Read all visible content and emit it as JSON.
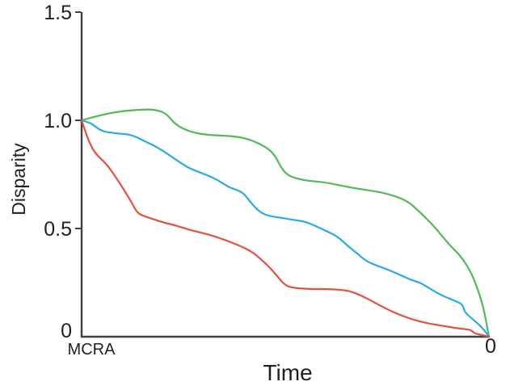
{
  "figure": {
    "background": "#ffffff",
    "axis_color": "#414042",
    "text_color": "#231f20"
  },
  "chart_data": {
    "type": "line",
    "title": "",
    "xlabel": "Time",
    "ylabel": "Disparity",
    "grid": false,
    "legend": "none",
    "xlim": [
      0,
      1
    ],
    "ylim": [
      0,
      1.5
    ],
    "x_tick_labels": [
      "MCRA",
      "0"
    ],
    "y_ticks": [
      1.5,
      1.0,
      0.5,
      0
    ],
    "y_tick_labels": [
      "1.5",
      "1.0",
      "0.5",
      "0"
    ],
    "series": [
      {
        "name": "green",
        "color": "#50ba5a",
        "x": [
          0.0,
          0.038,
          0.087,
          0.147,
          0.177,
          0.206,
          0.23,
          0.262,
          0.296,
          0.335,
          0.381,
          0.415,
          0.454,
          0.474,
          0.49,
          0.504,
          0.52,
          0.554,
          0.593,
          0.633,
          0.673,
          0.712,
          0.752,
          0.798,
          0.831,
          0.865,
          0.885,
          0.905,
          0.927,
          0.946,
          0.96,
          0.974,
          0.984,
          0.992,
          1.0
        ],
        "y": [
          1.0,
          1.02,
          1.04,
          1.05,
          1.05,
          1.035,
          0.98,
          0.95,
          0.935,
          0.93,
          0.925,
          0.91,
          0.875,
          0.84,
          0.78,
          0.75,
          0.735,
          0.72,
          0.715,
          0.7,
          0.685,
          0.675,
          0.66,
          0.63,
          0.575,
          0.51,
          0.465,
          0.42,
          0.38,
          0.33,
          0.28,
          0.21,
          0.15,
          0.08,
          0.0
        ]
      },
      {
        "name": "cyan",
        "color": "#29abe2",
        "x": [
          0.0,
          0.018,
          0.028,
          0.048,
          0.081,
          0.121,
          0.153,
          0.187,
          0.226,
          0.262,
          0.296,
          0.329,
          0.361,
          0.395,
          0.415,
          0.435,
          0.454,
          0.488,
          0.52,
          0.554,
          0.593,
          0.627,
          0.653,
          0.673,
          0.698,
          0.722,
          0.752,
          0.782,
          0.812,
          0.831,
          0.861,
          0.885,
          0.917,
          0.935,
          0.94,
          0.954,
          0.97,
          0.984,
          1.0
        ],
        "y": [
          1.0,
          0.99,
          0.98,
          0.95,
          0.94,
          0.935,
          0.905,
          0.875,
          0.825,
          0.78,
          0.755,
          0.73,
          0.69,
          0.67,
          0.62,
          0.58,
          0.56,
          0.55,
          0.54,
          0.53,
          0.495,
          0.465,
          0.42,
          0.39,
          0.35,
          0.33,
          0.31,
          0.285,
          0.26,
          0.25,
          0.215,
          0.19,
          0.165,
          0.15,
          0.115,
          0.09,
          0.065,
          0.04,
          0.0
        ]
      },
      {
        "name": "red",
        "color": "#e0523e",
        "x": [
          0.0,
          0.008,
          0.018,
          0.034,
          0.063,
          0.097,
          0.123,
          0.137,
          0.157,
          0.196,
          0.23,
          0.262,
          0.296,
          0.325,
          0.355,
          0.389,
          0.421,
          0.454,
          0.478,
          0.5,
          0.524,
          0.563,
          0.603,
          0.653,
          0.687,
          0.722,
          0.752,
          0.782,
          0.812,
          0.841,
          0.871,
          0.901,
          0.931,
          0.956,
          0.964,
          0.984,
          1.0
        ],
        "y": [
          1.0,
          0.955,
          0.9,
          0.845,
          0.795,
          0.7,
          0.62,
          0.57,
          0.555,
          0.53,
          0.515,
          0.495,
          0.48,
          0.465,
          0.445,
          0.42,
          0.39,
          0.335,
          0.285,
          0.235,
          0.225,
          0.22,
          0.22,
          0.215,
          0.19,
          0.155,
          0.125,
          0.1,
          0.08,
          0.065,
          0.055,
          0.045,
          0.037,
          0.032,
          0.015,
          0.008,
          0.0
        ]
      }
    ]
  }
}
